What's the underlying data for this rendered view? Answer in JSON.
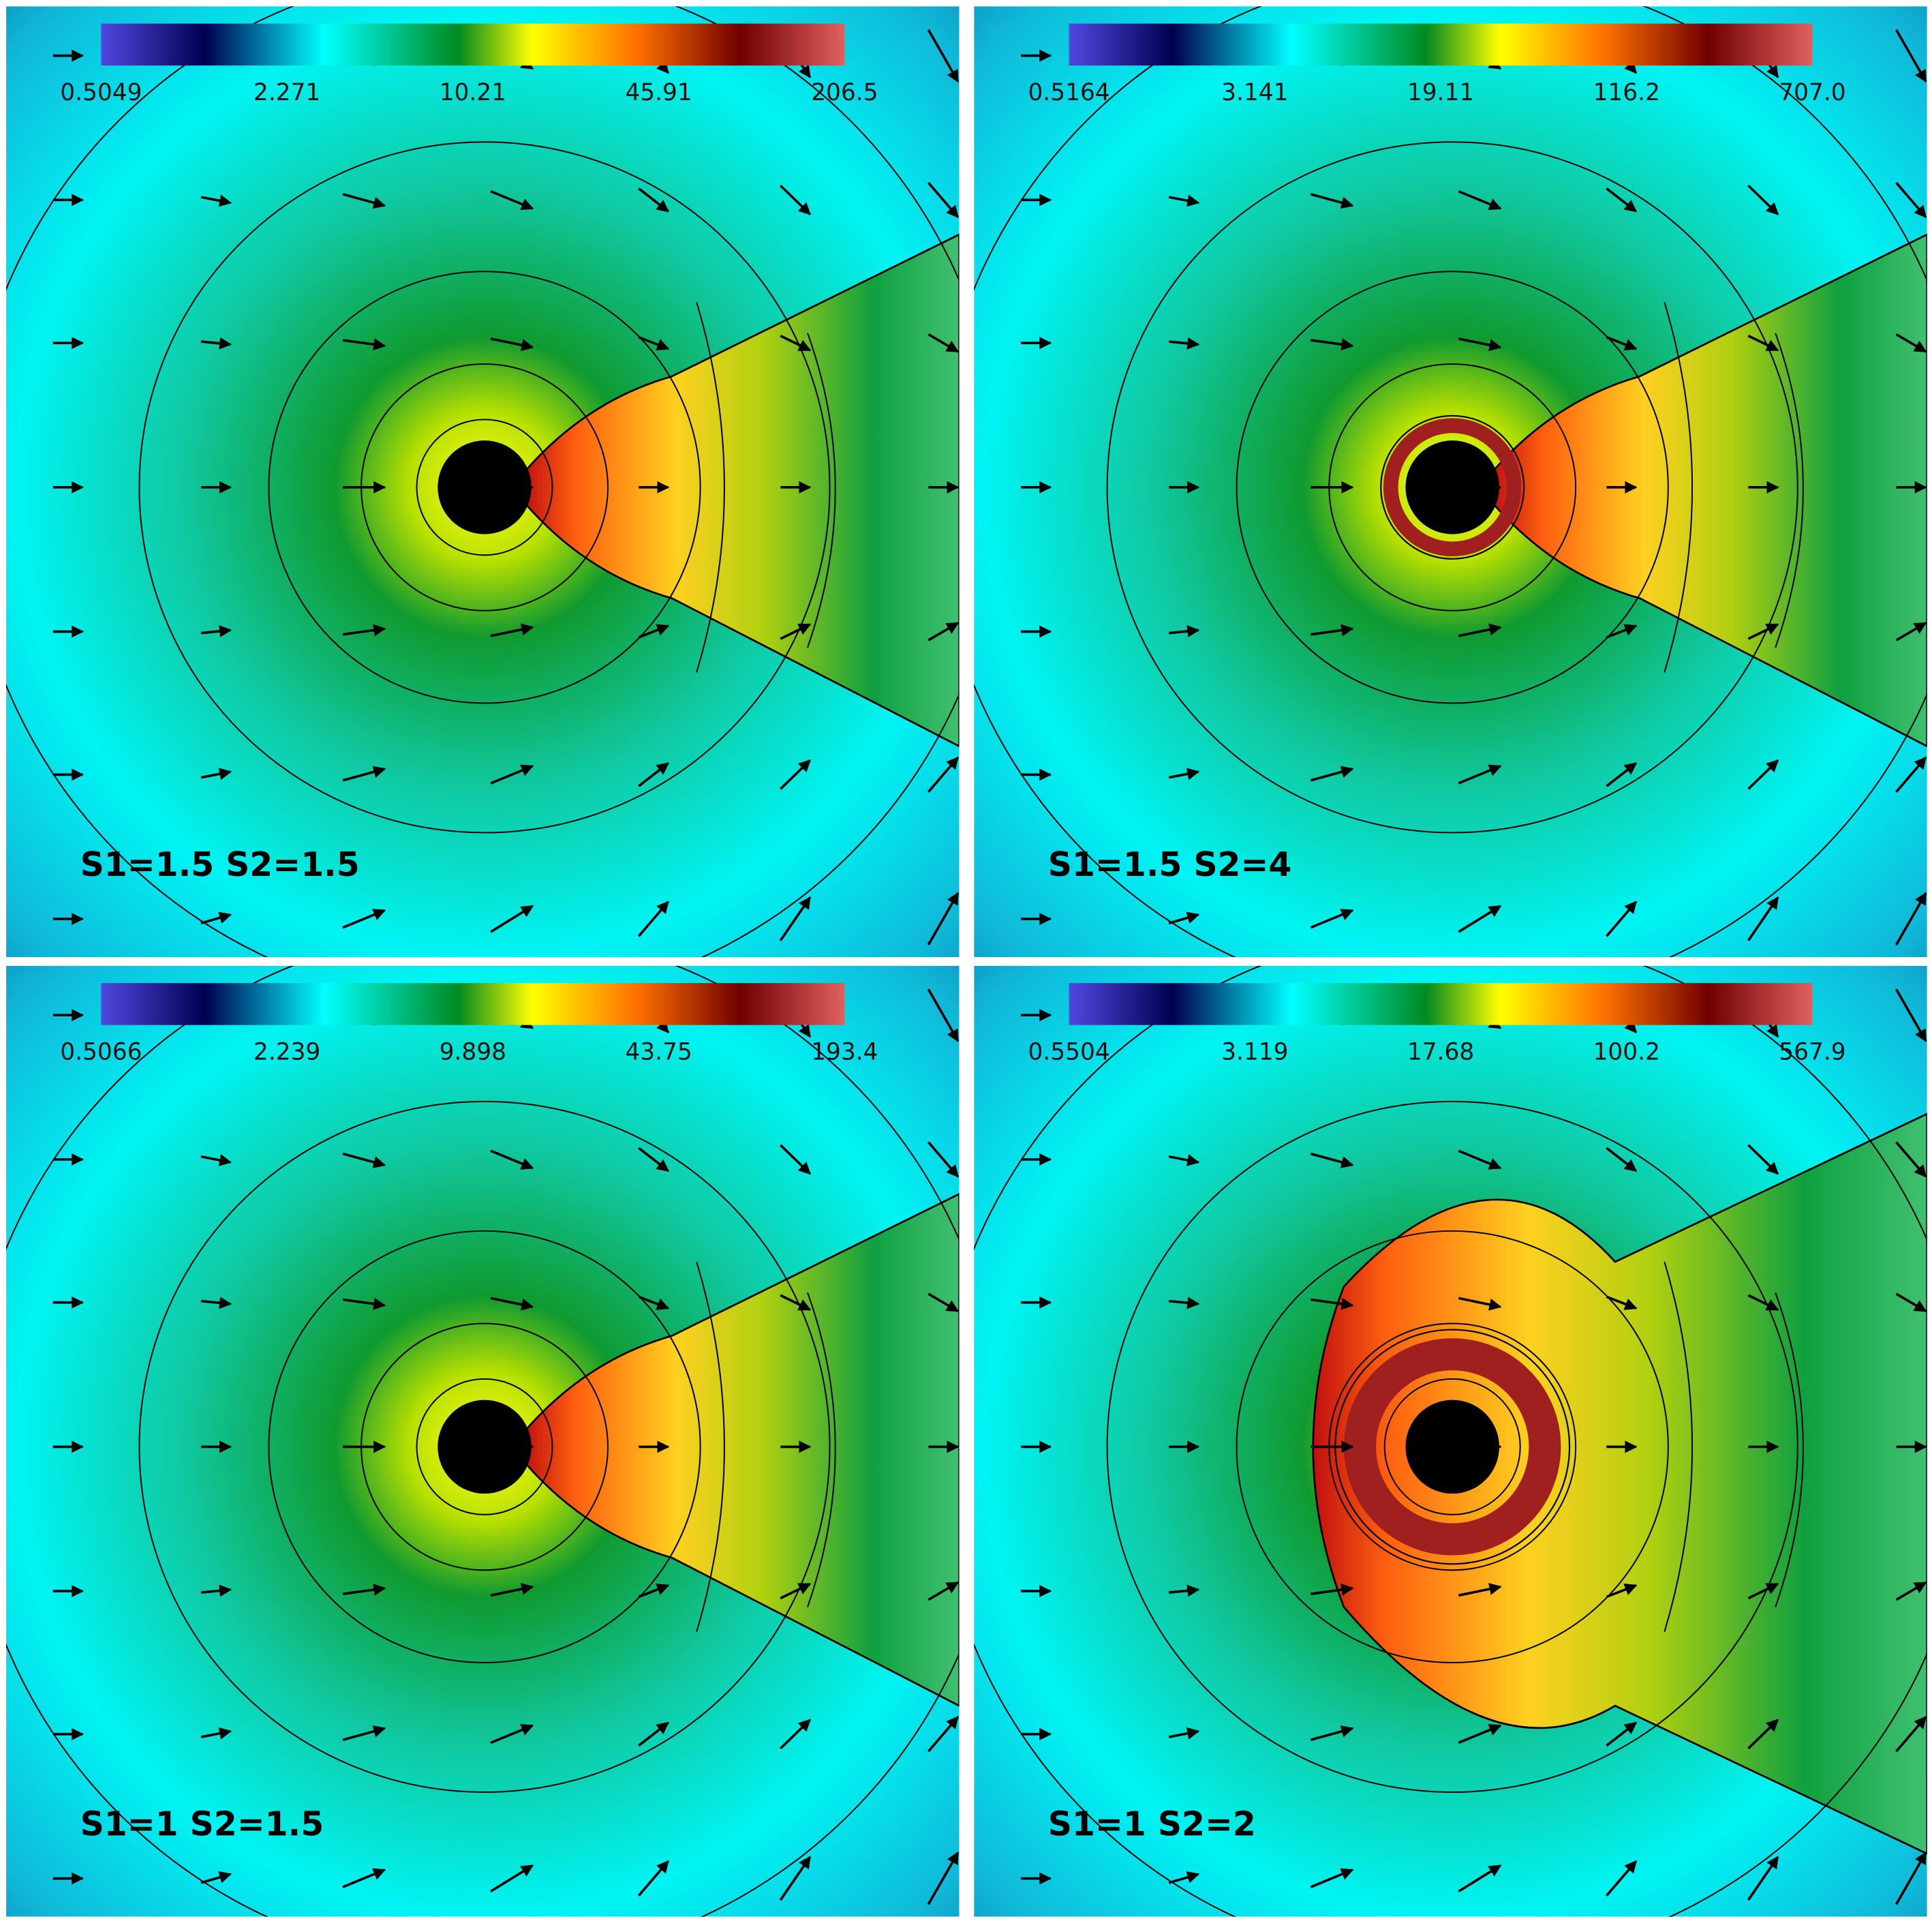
{
  "panels": [
    {
      "label": "S1=1.5  S2=1.5",
      "colorbar_ticks": [
        "0.5049",
        "2.271",
        "10.21",
        "45.91",
        "206.5"
      ]
    },
    {
      "label": "S1=1.5  S2=4",
      "colorbar_ticks": [
        "0.5164",
        "3.141",
        "19.11",
        "116.2",
        "707.0"
      ]
    },
    {
      "label": "S1=1  S2=1.5",
      "colorbar_ticks": [
        "0.5066",
        "2.239",
        "9.898",
        "43.75",
        "193.4"
      ]
    },
    {
      "label": "S1=1  S2=2",
      "colorbar_ticks": [
        "0.5504",
        "3.119",
        "17.68",
        "100.2",
        "567.9"
      ]
    }
  ]
}
